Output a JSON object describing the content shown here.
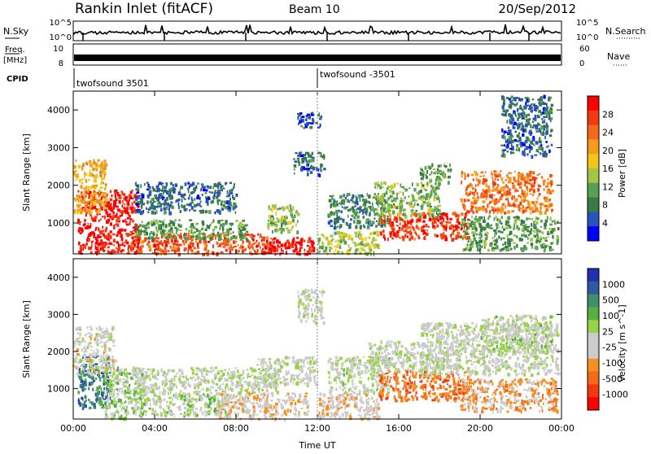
{
  "header": {
    "station": "Rankin Inlet (fitACF)",
    "beam": "Beam 10",
    "date": "20/Sep/2012"
  },
  "params": {
    "nsky_label": "N.Sky",
    "nsky_ticks": [
      "10^5",
      "10^0"
    ],
    "nsearch_label": "N.Search",
    "freq_label_1": "Freq.",
    "freq_label_2": "[MHz]",
    "freq_ticks": [
      "10",
      "8"
    ],
    "nave_label": "Nave",
    "nave_ticks": [
      "60",
      "0"
    ],
    "cpid_label": "CPID",
    "cpid_entries": [
      {
        "time": "00:00",
        "label": "twofsound 3501"
      },
      {
        "time": "12:00",
        "label": "twofsound -3501"
      }
    ]
  },
  "chart_data": [
    {
      "type": "heatmap",
      "title": "",
      "xlabel": "",
      "ylabel": "Slant Range [km]",
      "x_range": [
        "00:00",
        "24:00"
      ],
      "x_ticks": [
        "00:00",
        "04:00",
        "08:00",
        "12:00",
        "16:00",
        "20:00",
        "00:00"
      ],
      "ylim": [
        180,
        4500
      ],
      "y_ticks": [
        1000,
        2000,
        3000,
        4000
      ],
      "colorbar": {
        "label": "Power [dB]",
        "ticks": [
          "28",
          "24",
          "20",
          "16",
          "12",
          "8",
          "4"
        ],
        "range": [
          0,
          30
        ],
        "colors": [
          "#0000ff",
          "#2a55b8",
          "#3a7a45",
          "#55a055",
          "#a3c644",
          "#f2c518",
          "#f59a1a",
          "#f46a1a",
          "#ef3a12",
          "#ff0000"
        ]
      },
      "regions": [
        {
          "x": [
            0.2,
            3.2
          ],
          "y": [
            200,
            1900
          ],
          "level": 28
        },
        {
          "x": [
            0.0,
            1.6
          ],
          "y": [
            1300,
            2700
          ],
          "level": 18
        },
        {
          "x": [
            2.8,
            9.5
          ],
          "y": [
            200,
            750
          ],
          "level": 24
        },
        {
          "x": [
            3.0,
            8.5
          ],
          "y": [
            600,
            1100
          ],
          "level": 10
        },
        {
          "x": [
            3.0,
            8.0
          ],
          "y": [
            1300,
            2100
          ],
          "level": 6
        },
        {
          "x": [
            9.2,
            11.8
          ],
          "y": [
            200,
            650
          ],
          "level": 28
        },
        {
          "x": [
            9.5,
            11.0
          ],
          "y": [
            800,
            1500
          ],
          "level": 12
        },
        {
          "x": [
            11.0,
            12.2
          ],
          "y": [
            3550,
            3950
          ],
          "level": 4
        },
        {
          "x": [
            10.8,
            12.3
          ],
          "y": [
            2300,
            2900
          ],
          "level": 6
        },
        {
          "x": [
            12.0,
            15.0
          ],
          "y": [
            200,
            800
          ],
          "level": 14
        },
        {
          "x": [
            12.5,
            15.5
          ],
          "y": [
            900,
            1800
          ],
          "level": 8
        },
        {
          "x": [
            15.0,
            19.5
          ],
          "y": [
            600,
            1300
          ],
          "level": 26
        },
        {
          "x": [
            14.8,
            18.0
          ],
          "y": [
            1200,
            2100
          ],
          "level": 12
        },
        {
          "x": [
            17.0,
            18.5
          ],
          "y": [
            2100,
            2600
          ],
          "level": 10
        },
        {
          "x": [
            19.0,
            23.5
          ],
          "y": [
            1300,
            2400
          ],
          "level": 22
        },
        {
          "x": [
            19.0,
            23.8
          ],
          "y": [
            300,
            1200
          ],
          "level": 10
        },
        {
          "x": [
            21.0,
            23.5
          ],
          "y": [
            2800,
            4400
          ],
          "level": 6
        }
      ]
    },
    {
      "type": "heatmap",
      "title": "",
      "xlabel": "Time UT",
      "ylabel": "Slant Range [km]",
      "x_range": [
        "00:00",
        "24:00"
      ],
      "x_ticks": [
        "00:00",
        "04:00",
        "08:00",
        "12:00",
        "16:00",
        "20:00",
        "00:00"
      ],
      "ylim": [
        180,
        4500
      ],
      "y_ticks": [
        1000,
        2000,
        3000,
        4000
      ],
      "colorbar": {
        "label": "Velocity [m s^-1]",
        "ticks": [
          "1000",
          "500",
          "100",
          "25",
          "-25",
          "-100",
          "-500",
          "-1000"
        ],
        "range": [
          -1000,
          1000
        ],
        "colors": [
          "#ff0000",
          "#f23a10",
          "#f46a18",
          "#f79020",
          "#cccccc",
          "#cccccc",
          "#9ad24a",
          "#56b040",
          "#3f8f6f",
          "#2e5a9e",
          "#2030b0"
        ]
      },
      "regions": [
        {
          "x": [
            0.2,
            1.8
          ],
          "y": [
            500,
            1900
          ],
          "level": 600
        },
        {
          "x": [
            1.5,
            3.5
          ],
          "y": [
            200,
            1600
          ],
          "level": 150
        },
        {
          "x": [
            0.0,
            2.0
          ],
          "y": [
            1400,
            2700
          ],
          "level": -80
        },
        {
          "x": [
            3.0,
            7.5
          ],
          "y": [
            300,
            900
          ],
          "level": 120
        },
        {
          "x": [
            3.0,
            10.0
          ],
          "y": [
            900,
            1600
          ],
          "level": 0
        },
        {
          "x": [
            7.0,
            11.5
          ],
          "y": [
            200,
            900
          ],
          "level": -200
        },
        {
          "x": [
            9.0,
            12.0
          ],
          "y": [
            1100,
            1900
          ],
          "level": 0
        },
        {
          "x": [
            11.0,
            12.3
          ],
          "y": [
            2800,
            3700
          ],
          "level": 0
        },
        {
          "x": [
            12.0,
            15.0
          ],
          "y": [
            200,
            900
          ],
          "level": -150
        },
        {
          "x": [
            12.5,
            15.5
          ],
          "y": [
            900,
            1900
          ],
          "level": 50
        },
        {
          "x": [
            15.0,
            19.5
          ],
          "y": [
            700,
            1500
          ],
          "level": -500
        },
        {
          "x": [
            14.5,
            19.0
          ],
          "y": [
            1500,
            2300
          ],
          "level": 0
        },
        {
          "x": [
            17.0,
            23.8
          ],
          "y": [
            1400,
            2800
          ],
          "level": 0
        },
        {
          "x": [
            19.0,
            23.8
          ],
          "y": [
            400,
            1300
          ],
          "level": -300
        },
        {
          "x": [
            20.0,
            23.5
          ],
          "y": [
            2000,
            3000
          ],
          "level": 80
        }
      ]
    }
  ]
}
